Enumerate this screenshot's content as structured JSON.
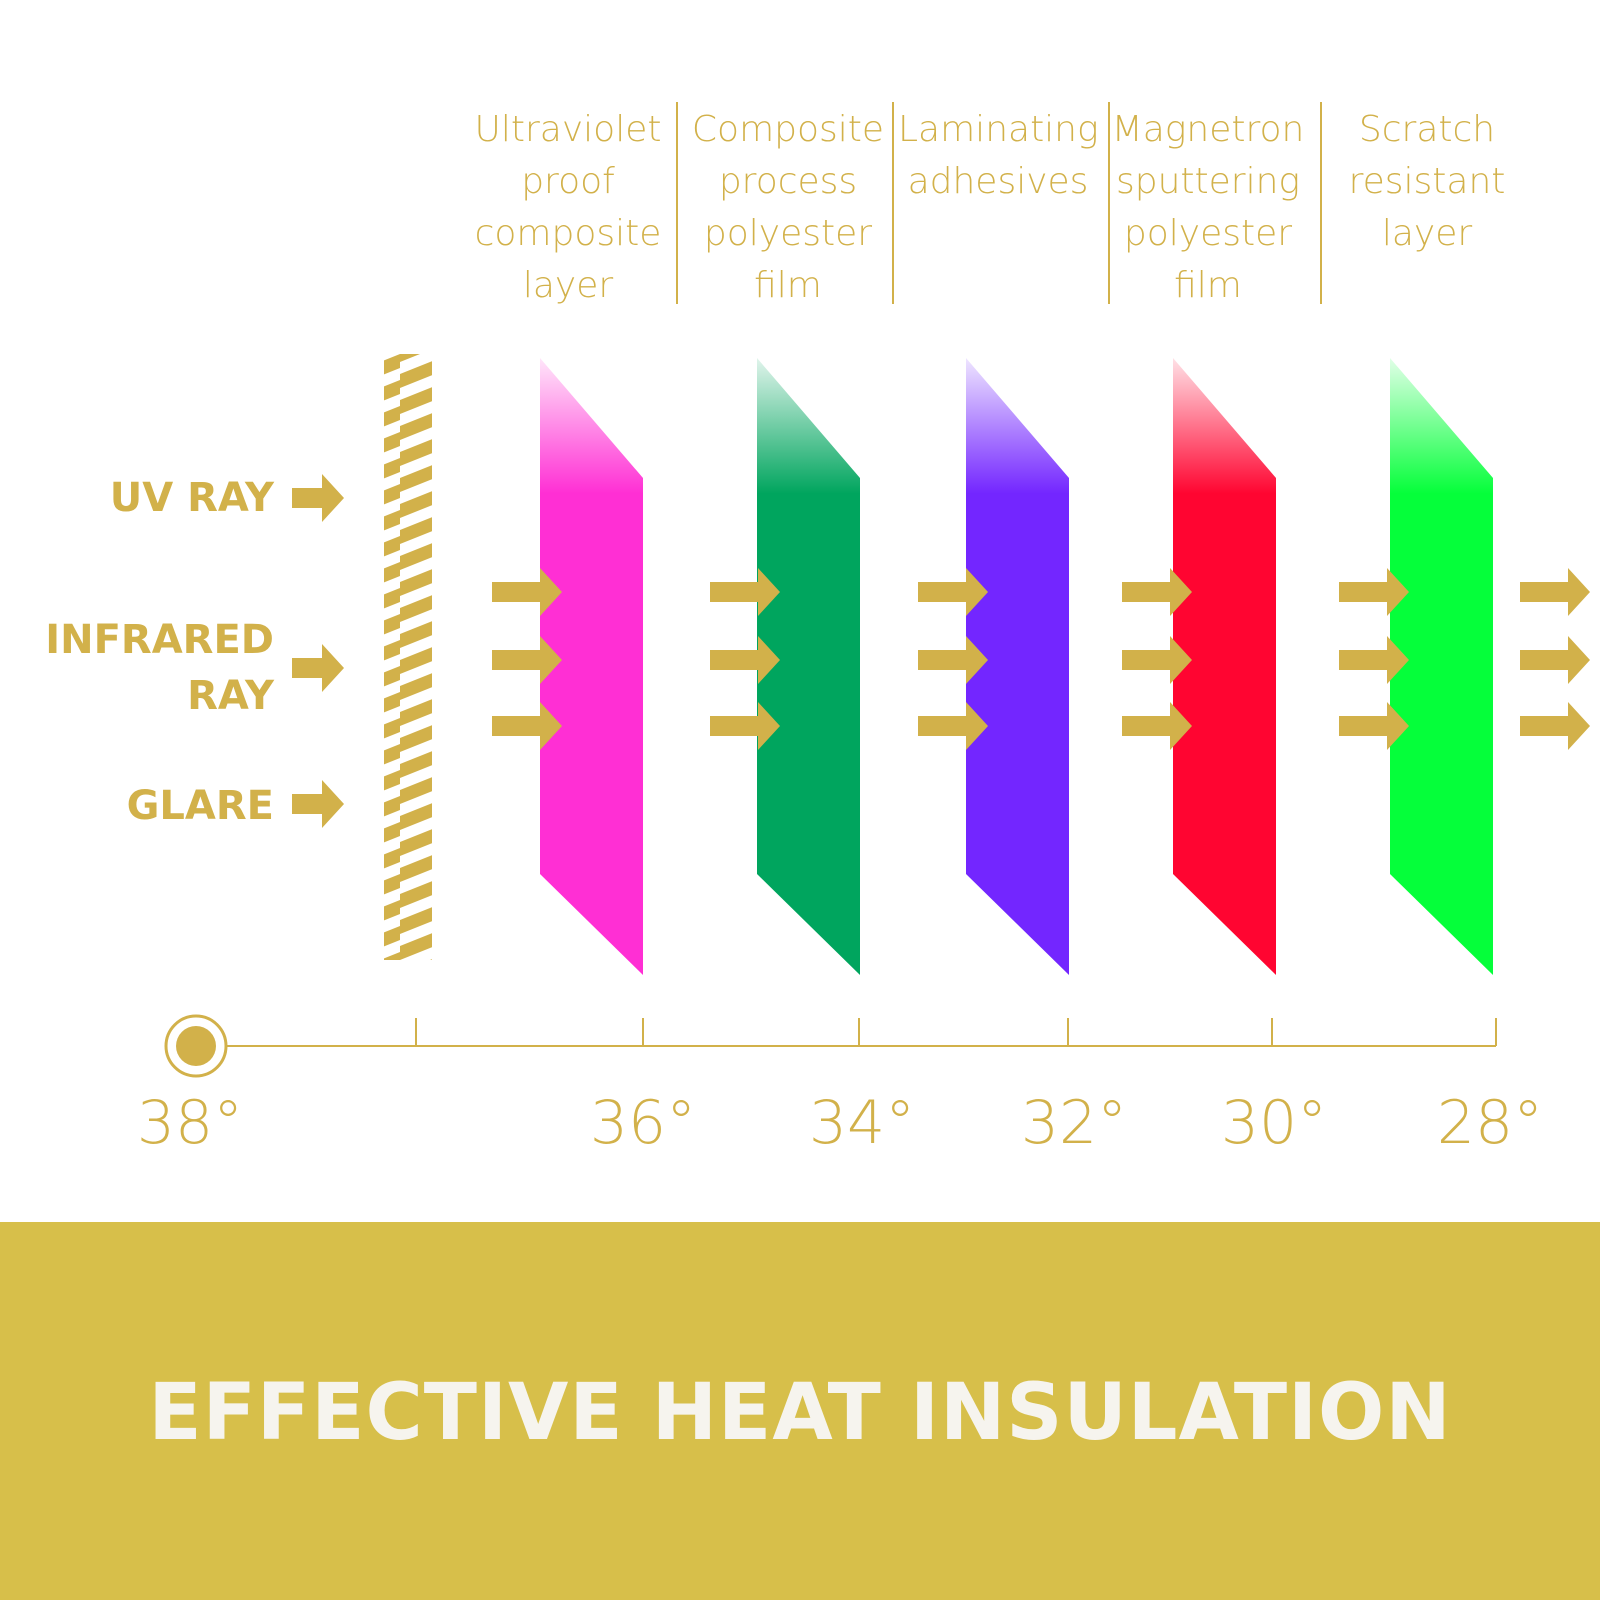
{
  "layers": [
    {
      "label": "Ultraviolet\nproof\ncomposite\nlayer",
      "color": "#ff2fd4"
    },
    {
      "label": "Composite\nprocess\npolyester\nfilm",
      "color": "#00a55e"
    },
    {
      "label": "Laminating\nadhesives",
      "color": "#7326ff"
    },
    {
      "label": "Magnetron\nsputtering\npolyester\nfilm",
      "color": "#ff0531"
    },
    {
      "label": "Scratch\nresistant\nlayer",
      "color": "#05ff3a"
    }
  ],
  "rays": [
    {
      "label": "UV RAY"
    },
    {
      "label": "INFRARED\nRAY"
    },
    {
      "label": "GLARE"
    }
  ],
  "temperatures": [
    "38°",
    "36°",
    "34°",
    "32°",
    "30°",
    "28°"
  ],
  "banner": {
    "title": "EFFECTIVE HEAT INSULATION"
  },
  "colors": {
    "accent": "#d2b14a",
    "banner": "#d7bf4a",
    "banner_text": "#f6f4ee"
  }
}
